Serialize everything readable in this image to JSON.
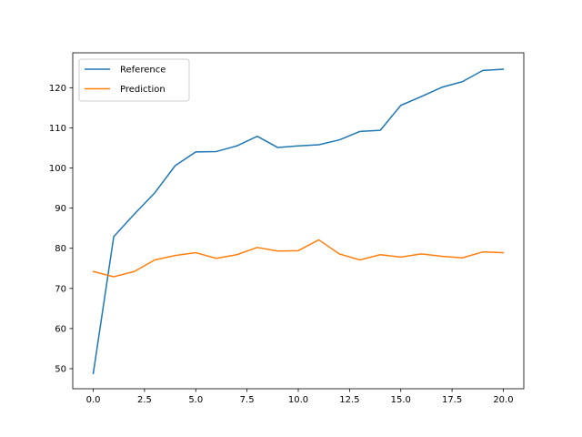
{
  "chart_data": {
    "type": "line",
    "title": "",
    "xlabel": "",
    "ylabel": "",
    "xlim": [
      -1.0,
      21.0
    ],
    "ylim": [
      45.0,
      128.7
    ],
    "grid": false,
    "legend_position": "top-left",
    "x": [
      0,
      1,
      2,
      3,
      4,
      5,
      6,
      7,
      8,
      9,
      10,
      11,
      12,
      13,
      14,
      15,
      16,
      17,
      18,
      19,
      20
    ],
    "series": [
      {
        "name": "Reference",
        "color": "#1f77b4",
        "values": [
          48.8,
          82.9,
          88.5,
          93.8,
          100.6,
          104.0,
          104.1,
          105.5,
          107.9,
          105.1,
          105.5,
          105.8,
          107.0,
          109.1,
          109.4,
          115.6,
          117.8,
          120.1,
          121.5,
          124.3,
          124.6
        ]
      },
      {
        "name": "Prediction",
        "color": "#ff7f0e",
        "values": [
          74.2,
          72.9,
          74.2,
          77.1,
          78.2,
          78.9,
          77.5,
          78.4,
          80.2,
          79.3,
          79.4,
          82.1,
          78.6,
          77.1,
          78.4,
          77.8,
          78.6,
          78.0,
          77.6,
          79.1,
          78.9
        ]
      }
    ],
    "xticks": [
      "0.0",
      "2.5",
      "5.0",
      "7.5",
      "10.0",
      "12.5",
      "15.0",
      "17.5",
      "20.0"
    ],
    "yticks": [
      "50",
      "60",
      "70",
      "80",
      "90",
      "100",
      "110",
      "120"
    ]
  }
}
